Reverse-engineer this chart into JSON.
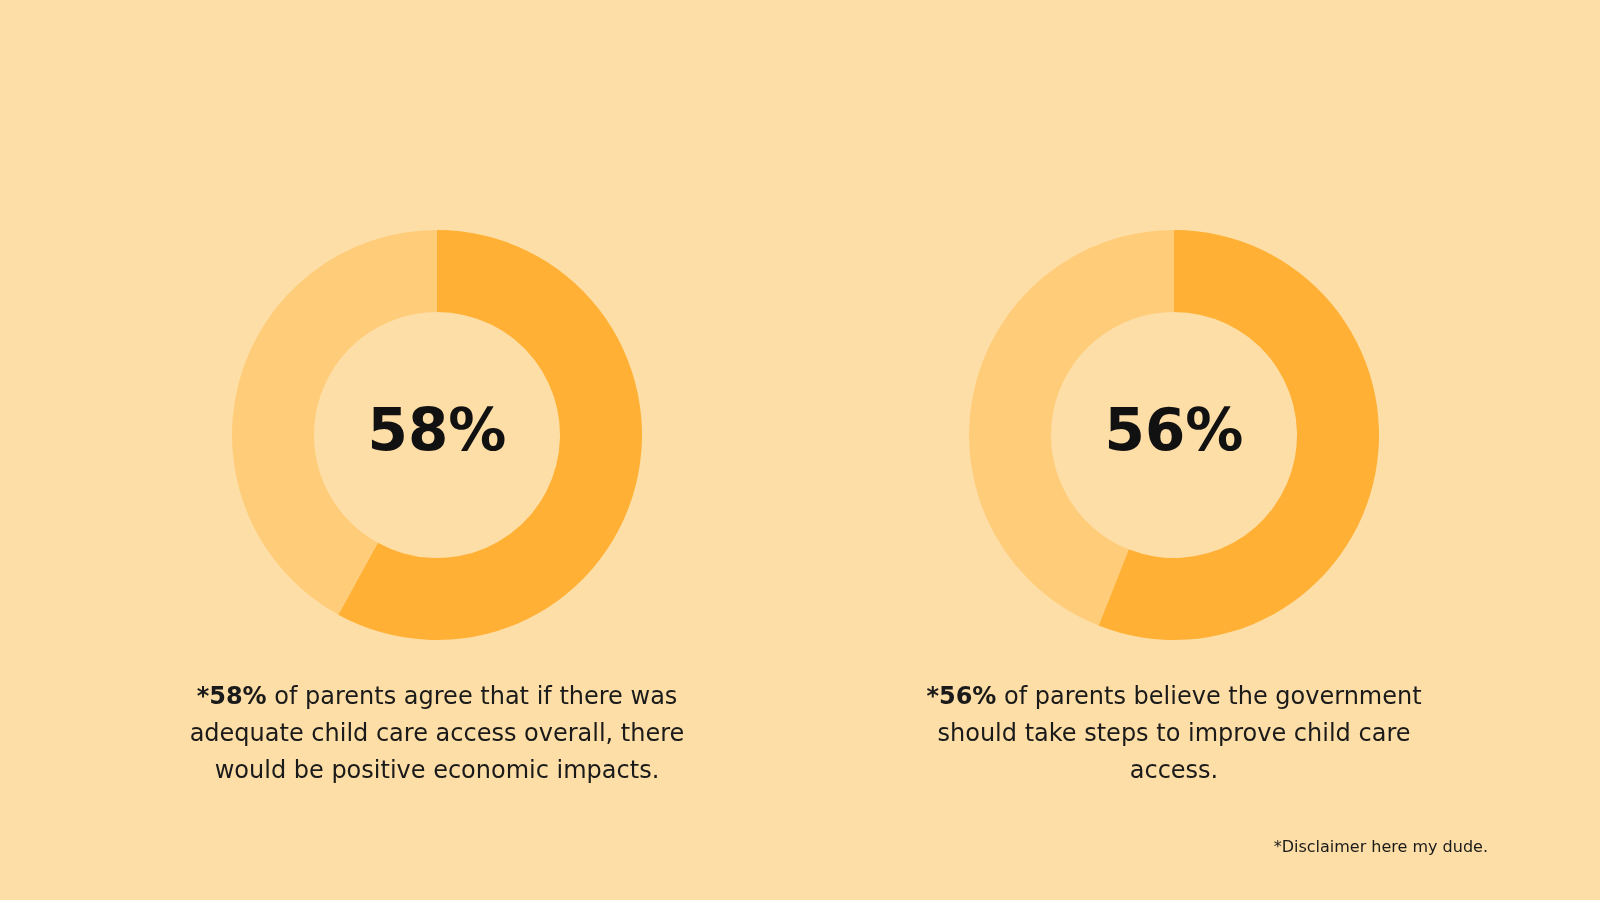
{
  "chart_data": [
    {
      "type": "donut",
      "categories": [
        null,
        null
      ],
      "values": [
        58,
        42
      ],
      "colors": [
        "#ffb035",
        "#ffcc7a"
      ],
      "value_labels": [
        "58%",
        null
      ],
      "annotations": [
        "*58% of parents agree that if there was adequate child care access overall, there would be positive economic impacts."
      ]
    },
    {
      "type": "donut",
      "categories": [
        null,
        null
      ],
      "values": [
        56,
        44
      ],
      "colors": [
        "#ffb035",
        "#ffcc7a"
      ],
      "value_labels": [
        "56%",
        null
      ],
      "annotations": [
        "*56% of parents believe the government should take steps to improve child care access.",
        "*Disclaimer here my dude."
      ]
    }
  ]
}
